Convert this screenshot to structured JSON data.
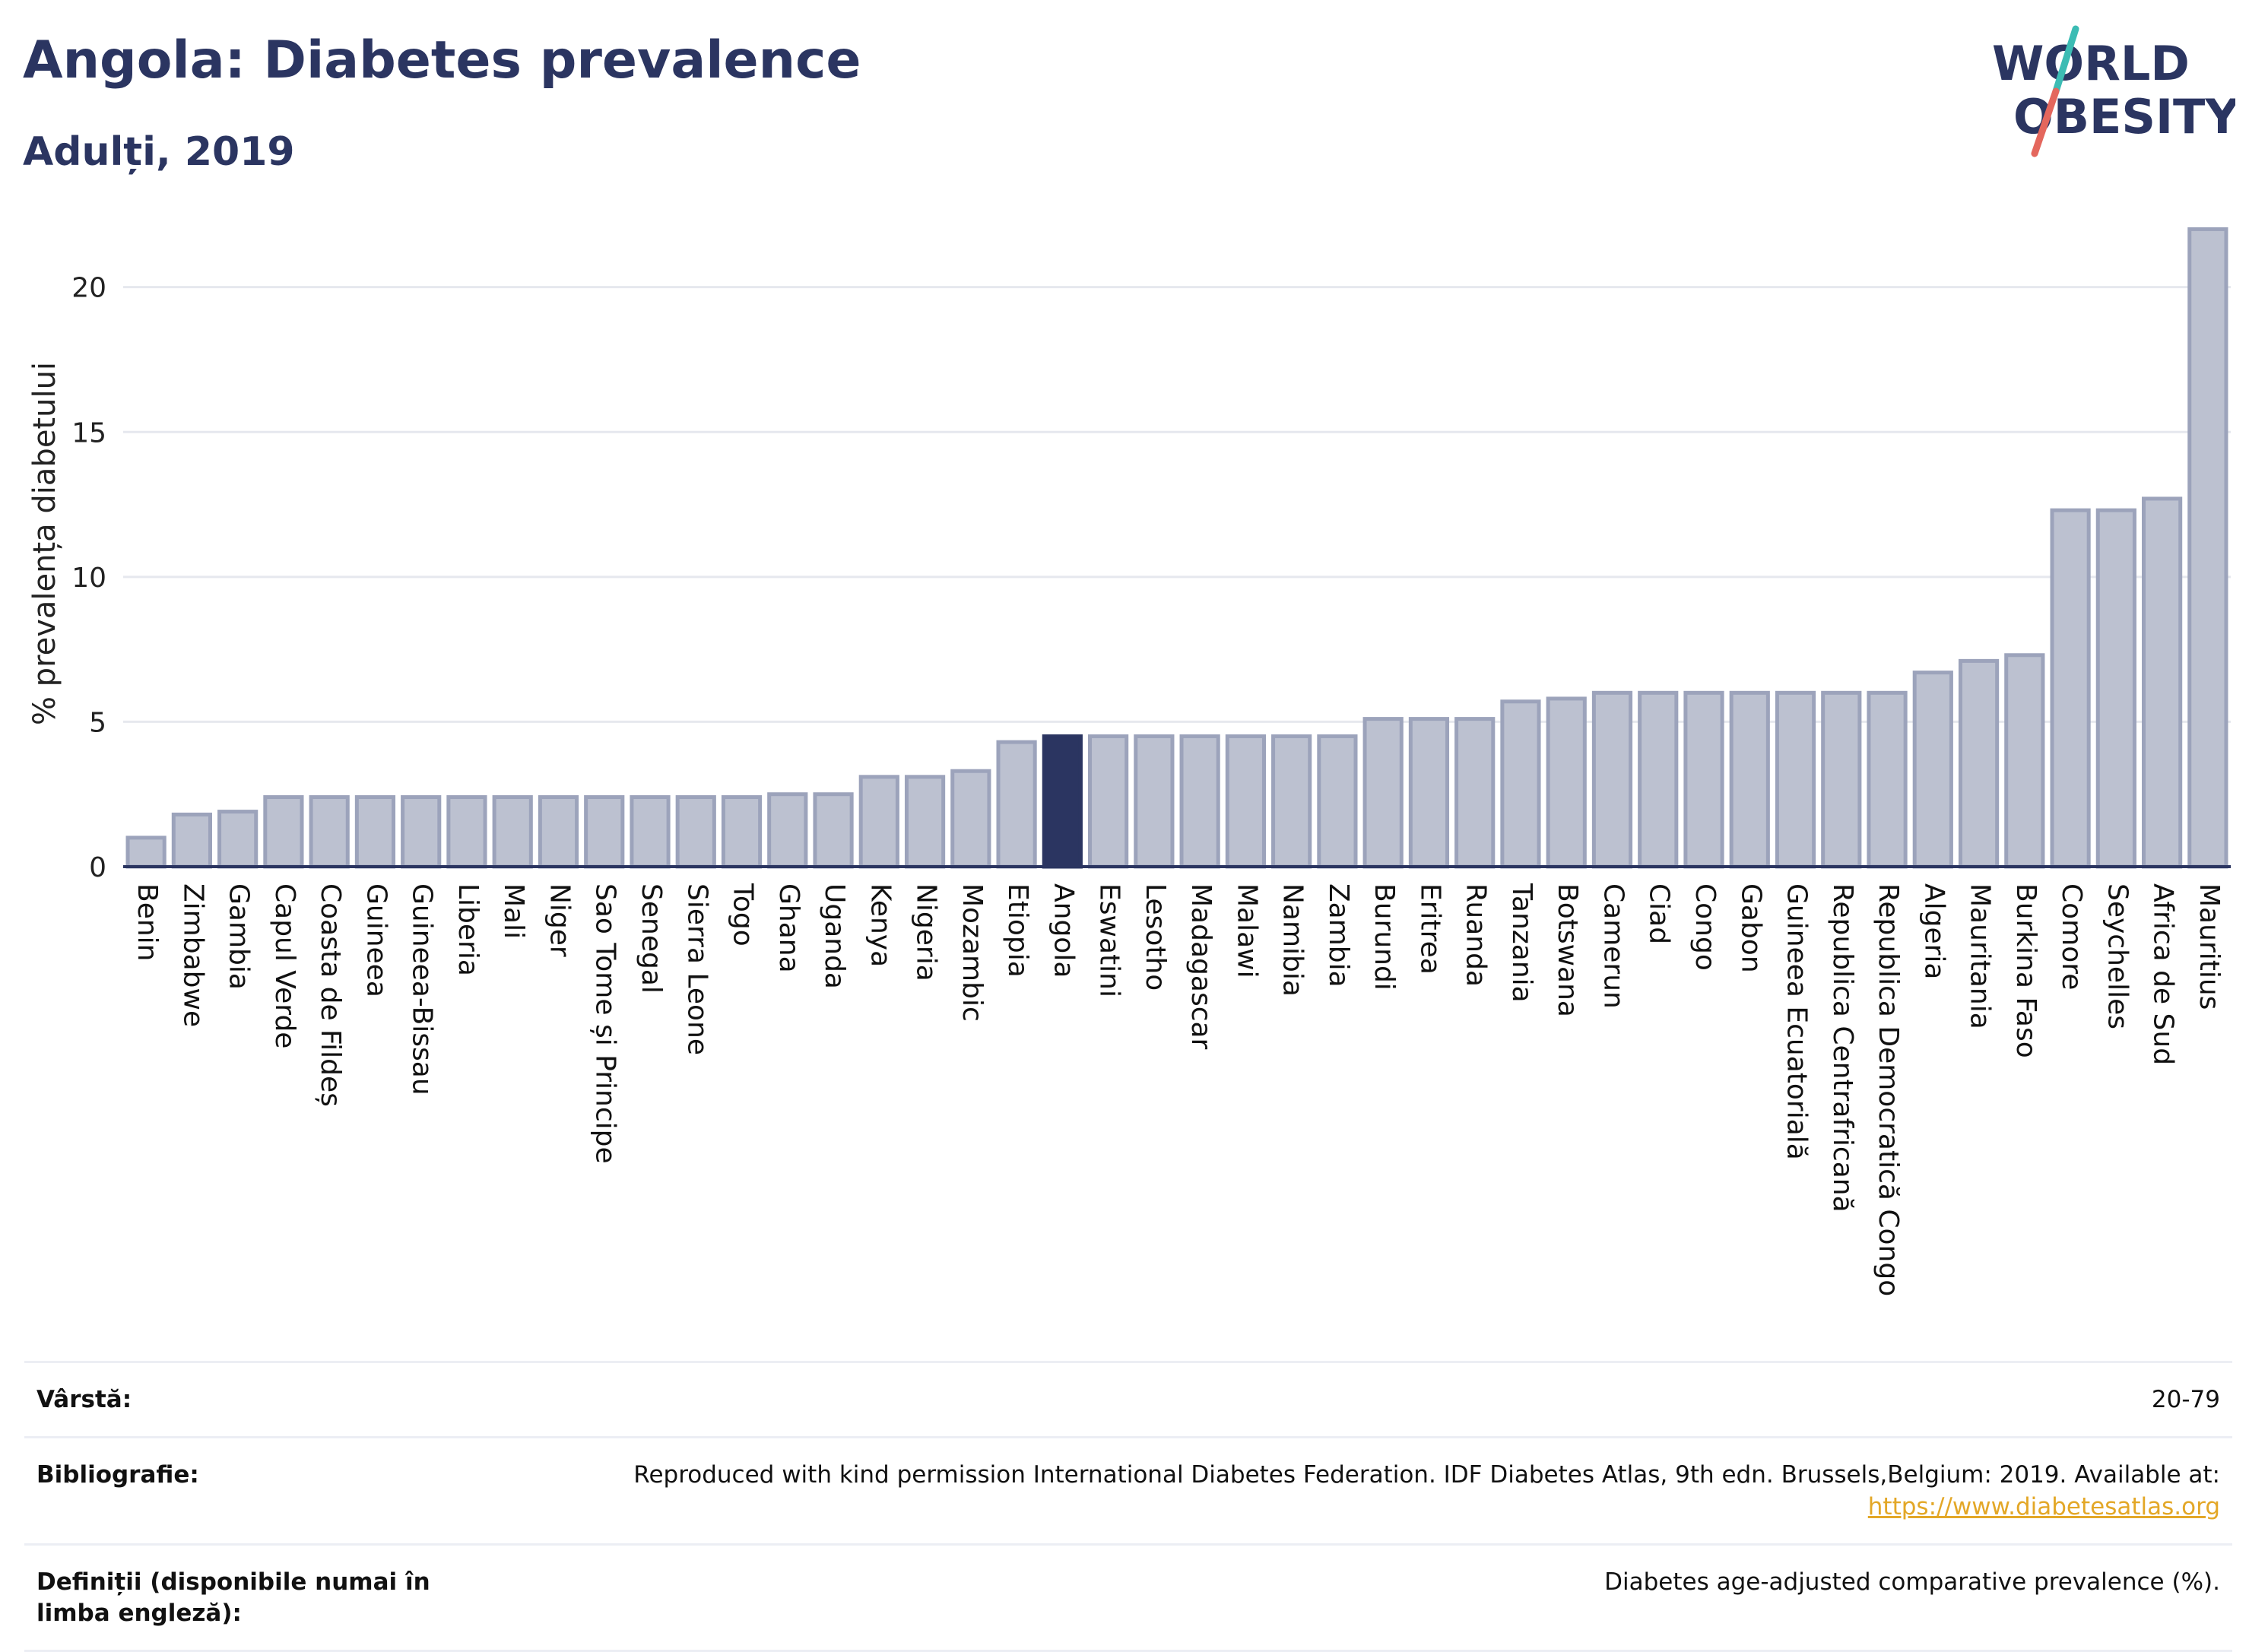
{
  "header": {
    "title": "Angola: Diabetes prevalence",
    "subtitle": "Adulți, 2019"
  },
  "logo": {
    "line1": "WORLD",
    "line2": "OBESITY"
  },
  "colors": {
    "bar": "#bcc1d0",
    "bar_stroke": "#9ca3bb",
    "highlight": "#2b3561",
    "grid": "#e6e8ee",
    "axis": "#2b3561",
    "text": "#2b3561",
    "logo_slash_top": "#3cbcb4",
    "logo_slash_bottom": "#e4675d"
  },
  "chart_data": {
    "type": "bar",
    "title": "",
    "xlabel": "",
    "ylabel": "% prevalența diabetului",
    "ylim": [
      0,
      22.3
    ],
    "yticks": [
      0,
      5,
      10,
      15,
      20
    ],
    "grid": true,
    "highlight": "Angola",
    "categories": [
      "Benin",
      "Zimbabwe",
      "Gambia",
      "Capul Verde",
      "Coasta de Fildeș",
      "Guineea",
      "Guineea-Bissau",
      "Liberia",
      "Mali",
      "Niger",
      "Sao Tome și Principe",
      "Senegal",
      "Sierra Leone",
      "Togo",
      "Ghana",
      "Uganda",
      "Kenya",
      "Nigeria",
      "Mozambic",
      "Etiopia",
      "Angola",
      "Eswatini",
      "Lesotho",
      "Madagascar",
      "Malawi",
      "Namibia",
      "Zambia",
      "Burundi",
      "Eritrea",
      "Ruanda",
      "Tanzania",
      "Botswana",
      "Camerun",
      "Ciad",
      "Congo",
      "Gabon",
      "Guineea Ecuatorială",
      "Republica Centrafricană",
      "Republica Democratică Congo",
      "Algeria",
      "Mauritania",
      "Burkina Faso",
      "Comore",
      "Seychelles",
      "Africa de Sud",
      "Mauritius"
    ],
    "values": [
      1.0,
      1.8,
      1.9,
      2.4,
      2.4,
      2.4,
      2.4,
      2.4,
      2.4,
      2.4,
      2.4,
      2.4,
      2.4,
      2.4,
      2.5,
      2.5,
      3.1,
      3.1,
      3.3,
      4.3,
      4.5,
      4.5,
      4.5,
      4.5,
      4.5,
      4.5,
      4.5,
      5.1,
      5.1,
      5.1,
      5.7,
      5.8,
      6.0,
      6.0,
      6.0,
      6.0,
      6.0,
      6.0,
      6.0,
      6.7,
      7.1,
      7.3,
      12.3,
      12.3,
      12.7,
      22.0
    ]
  },
  "info": {
    "rows": [
      {
        "label": "Vârstă:",
        "value": "20-79",
        "link": ""
      },
      {
        "label": "Bibliografie:",
        "value": "Reproduced with kind permission International Diabetes Federation. IDF Diabetes Atlas, 9th edn. Brussels,Belgium: 2019. Available at:",
        "link": "https://www.diabetesatlas.org"
      },
      {
        "label": "Definiții (disponibile numai în limba engleză):",
        "value": "Diabetes age-adjusted comparative prevalence (%).",
        "link": ""
      }
    ]
  }
}
